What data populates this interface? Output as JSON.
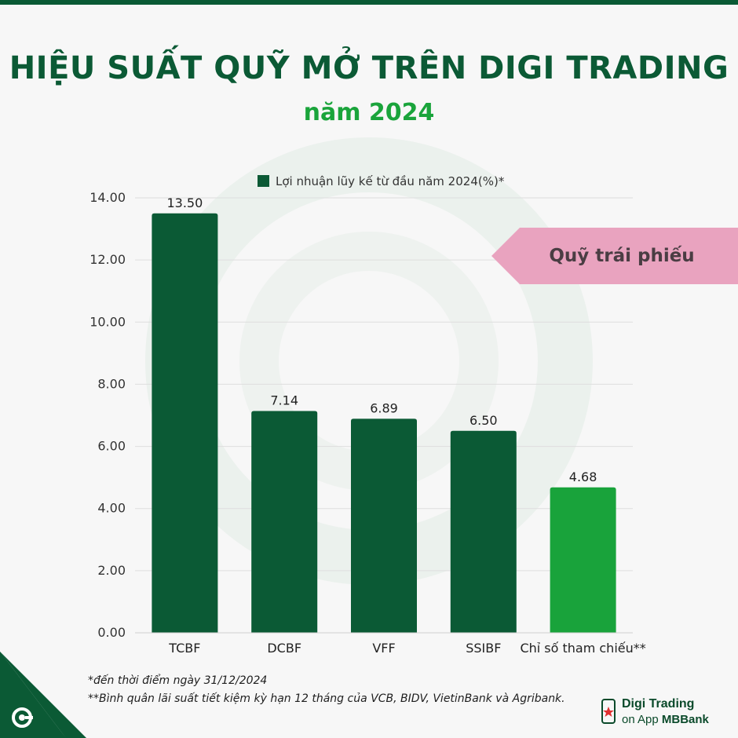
{
  "title": "HIỆU SUẤT QUỸ MỞ TRÊN DIGI TRADING",
  "subtitle": "năm 2024",
  "callout": "Quỹ trái phiếu",
  "footnotes": {
    "line1": "*đến thời điểm ngày 31/12/2024",
    "line2": "**Bình quân lãi suất tiết kiệm kỳ hạn 12 tháng của VCB, BIDV, VietinBank và Agribank."
  },
  "brand": {
    "line1": "Digi Trading",
    "line2_prefix": "on App ",
    "line2_strong": "MBBank"
  },
  "colors": {
    "bar": "#0b5a35",
    "reference_bar": "#19a33b",
    "title": "#0b5a35",
    "subtitle": "#1aa43b",
    "callout": "#e9a3bf"
  },
  "chart_data": {
    "type": "bar",
    "categories": [
      "TCBF",
      "DCBF",
      "VFF",
      "SSIBF",
      "Chỉ số tham chiếu**"
    ],
    "series": [
      {
        "name": "Lợi nhuận lũy kế từ đầu năm 2024(%)*",
        "values": [
          13.5,
          7.14,
          6.89,
          6.5,
          4.68
        ]
      }
    ],
    "value_labels": [
      "13.50",
      "7.14",
      "6.89",
      "6.50",
      "4.68"
    ],
    "highlight_index": 4,
    "ylim": [
      0,
      14
    ],
    "yticks": [
      "0.00",
      "2.00",
      "4.00",
      "6.00",
      "8.00",
      "10.00",
      "12.00",
      "14.00"
    ],
    "grid": true,
    "legend": "top-center"
  }
}
